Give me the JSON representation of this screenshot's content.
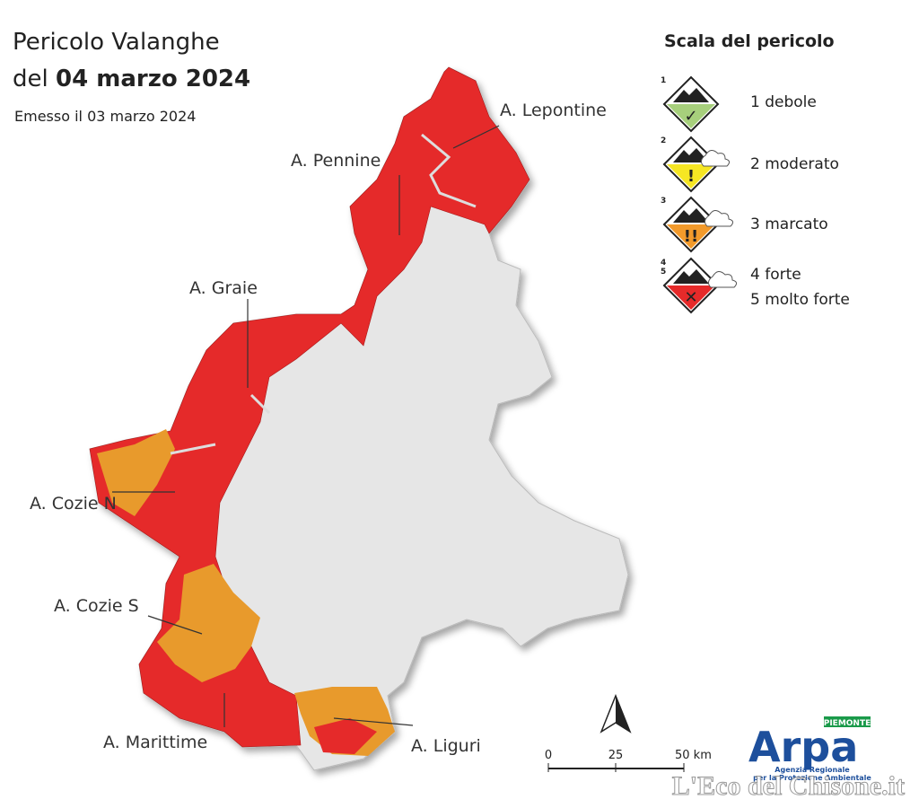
{
  "header": {
    "title_line1": "Pericolo Valanghe",
    "title_prefix": "del",
    "date": "04 marzo 2024",
    "issued": "Emesso il 03 marzo 2024"
  },
  "map": {
    "labels": [
      "A. Lepontine",
      "A. Pennine",
      "A. Graie",
      "A. Cozie N",
      "A. Cozie S",
      "A. Marittime",
      "A. Liguri"
    ]
  },
  "legend": {
    "title": "Scala del pericolo",
    "items": [
      {
        "levels": [
          "1"
        ],
        "labels": [
          "1 debole"
        ]
      },
      {
        "levels": [
          "2"
        ],
        "labels": [
          "2 moderato"
        ]
      },
      {
        "levels": [
          "3"
        ],
        "labels": [
          "3 marcato"
        ]
      },
      {
        "levels": [
          "4",
          "5"
        ],
        "labels": [
          "4 forte",
          "5 molto forte"
        ]
      }
    ]
  },
  "scale_bar": {
    "ticks": [
      "0",
      "25",
      "50 km"
    ]
  },
  "logo": {
    "name": "Arpa",
    "region": "PIEMONTE",
    "line1": "Agenzia Regionale",
    "line2": "per la Protezione Ambientale"
  },
  "watermark": "L'Eco del Chisone.it"
}
